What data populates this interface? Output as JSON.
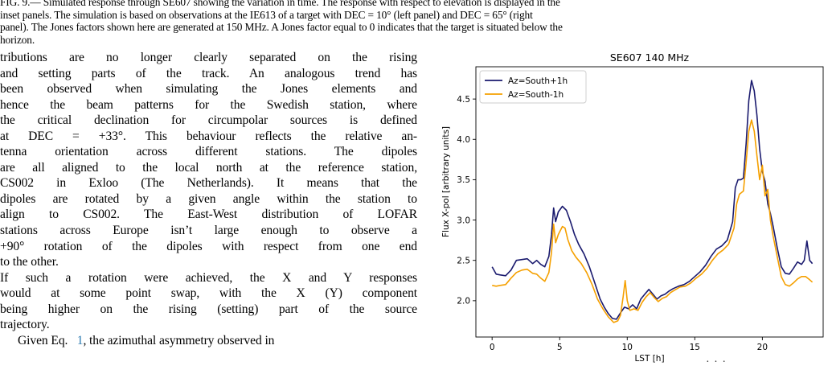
{
  "caption": {
    "line1": "FIG. 9.— Simulated response through SE607 showing the variation in time. The response with respect to elevation is displayed in the",
    "line2": "inset panels. The simulation is based on observations at the IE613 of a target with DEC = 10° (left panel) and DEC = 65° (right",
    "line3": "panel). The Jones factors shown here are generated at 150 MHz. A Jones factor equal to 0 indicates that the target is situated below the",
    "line4": "horizon."
  },
  "body_lines": [
    "tributions are no longer clearly separated on the rising",
    "and setting parts of the track. An analogous trend has",
    "been observed when simulating the Jones elements and",
    "hence the beam patterns for the Swedish station, where",
    "the critical declination for circumpolar sources is defined",
    "at DEC = +33°. This behaviour reflects the relative an-",
    "tenna orientation across different stations. The dipoles",
    "are all aligned to the local north at the reference station,",
    "CS002 in Exloo (The Netherlands). It means that the",
    "dipoles are rotated by a given angle within the station to",
    "align to CS002. The East-West distribution of LOFAR",
    "stations across Europe isn’t large enough to observe a",
    "+90° rotation of the dipoles with respect from one end",
    "to the other.",
    "If such a rotation were achieved, the X and Y responses",
    "would at some point swap, with the X (Y) component",
    "being higher on the rising (setting) part of the source",
    "trajectory."
  ],
  "body_last": {
    "prefix": "Given Eq.",
    "ref": "1",
    "suffix": ", the azimuthal asymmetry observed in"
  },
  "bottom_fragment": "· · ·",
  "chart_data": {
    "type": "line",
    "title": "SE607 140 MHz",
    "xlabel": "LST [h]",
    "ylabel": "Flux X-pol [arbitrary units]",
    "xlim": [
      -1.2,
      24.5
    ],
    "ylim": [
      1.55,
      4.9
    ],
    "xticks": [
      0,
      5,
      10,
      15,
      20
    ],
    "yticks": [
      2.0,
      2.5,
      3.0,
      3.5,
      4.0,
      4.5
    ],
    "ytick_labels": [
      "2.0",
      "2.5",
      "3.0",
      "3.5",
      "4.0",
      "4.5"
    ],
    "legend_position": "upper-left",
    "series": [
      {
        "name": "Az=South+1h",
        "color": "#1a1a6e",
        "points": [
          [
            0,
            2.42
          ],
          [
            0.3,
            2.33
          ],
          [
            0.6,
            2.32
          ],
          [
            1.0,
            2.31
          ],
          [
            1.4,
            2.38
          ],
          [
            1.8,
            2.5
          ],
          [
            2.2,
            2.51
          ],
          [
            2.6,
            2.52
          ],
          [
            3.0,
            2.46
          ],
          [
            3.3,
            2.5
          ],
          [
            3.6,
            2.45
          ],
          [
            3.9,
            2.42
          ],
          [
            4.2,
            2.55
          ],
          [
            4.4,
            2.82
          ],
          [
            4.55,
            3.15
          ],
          [
            4.7,
            2.98
          ],
          [
            4.9,
            3.1
          ],
          [
            5.2,
            3.17
          ],
          [
            5.5,
            3.12
          ],
          [
            5.8,
            2.98
          ],
          [
            6.1,
            2.82
          ],
          [
            6.4,
            2.7
          ],
          [
            6.8,
            2.58
          ],
          [
            7.2,
            2.42
          ],
          [
            7.6,
            2.22
          ],
          [
            8.0,
            2.02
          ],
          [
            8.3,
            1.92
          ],
          [
            8.6,
            1.84
          ],
          [
            8.9,
            1.78
          ],
          [
            9.2,
            1.77
          ],
          [
            9.5,
            1.85
          ],
          [
            9.8,
            1.92
          ],
          [
            10.1,
            1.9
          ],
          [
            10.4,
            1.95
          ],
          [
            10.7,
            1.9
          ],
          [
            11.0,
            2.02
          ],
          [
            11.3,
            2.08
          ],
          [
            11.6,
            2.14
          ],
          [
            11.9,
            2.08
          ],
          [
            12.2,
            2.02
          ],
          [
            12.5,
            2.06
          ],
          [
            12.8,
            2.08
          ],
          [
            13.1,
            2.12
          ],
          [
            13.4,
            2.15
          ],
          [
            13.8,
            2.18
          ],
          [
            14.2,
            2.2
          ],
          [
            14.6,
            2.24
          ],
          [
            15.0,
            2.3
          ],
          [
            15.4,
            2.36
          ],
          [
            15.8,
            2.44
          ],
          [
            16.2,
            2.55
          ],
          [
            16.6,
            2.64
          ],
          [
            17.0,
            2.68
          ],
          [
            17.4,
            2.75
          ],
          [
            17.8,
            2.98
          ],
          [
            18.0,
            3.4
          ],
          [
            18.2,
            3.5
          ],
          [
            18.4,
            3.5
          ],
          [
            18.6,
            3.52
          ],
          [
            18.8,
            3.95
          ],
          [
            19.0,
            4.48
          ],
          [
            19.2,
            4.73
          ],
          [
            19.4,
            4.6
          ],
          [
            19.6,
            4.3
          ],
          [
            19.8,
            3.88
          ],
          [
            20.0,
            3.6
          ],
          [
            20.2,
            3.48
          ],
          [
            20.4,
            3.2
          ],
          [
            20.6,
            3.08
          ],
          [
            20.8,
            2.92
          ],
          [
            21.1,
            2.66
          ],
          [
            21.4,
            2.42
          ],
          [
            21.7,
            2.34
          ],
          [
            22.0,
            2.33
          ],
          [
            22.3,
            2.4
          ],
          [
            22.6,
            2.48
          ],
          [
            22.9,
            2.45
          ],
          [
            23.1,
            2.5
          ],
          [
            23.3,
            2.74
          ],
          [
            23.5,
            2.5
          ],
          [
            23.7,
            2.46
          ]
        ]
      },
      {
        "name": "Az=South-1h",
        "color": "#f5a000",
        "points": [
          [
            0,
            2.19
          ],
          [
            0.3,
            2.18
          ],
          [
            0.6,
            2.19
          ],
          [
            1.0,
            2.2
          ],
          [
            1.4,
            2.28
          ],
          [
            1.8,
            2.35
          ],
          [
            2.2,
            2.38
          ],
          [
            2.6,
            2.39
          ],
          [
            3.0,
            2.34
          ],
          [
            3.3,
            2.33
          ],
          [
            3.6,
            2.28
          ],
          [
            3.9,
            2.24
          ],
          [
            4.2,
            2.35
          ],
          [
            4.4,
            2.6
          ],
          [
            4.55,
            2.95
          ],
          [
            4.7,
            2.72
          ],
          [
            4.9,
            2.82
          ],
          [
            5.2,
            2.92
          ],
          [
            5.4,
            2.9
          ],
          [
            5.6,
            2.76
          ],
          [
            5.9,
            2.62
          ],
          [
            6.2,
            2.54
          ],
          [
            6.6,
            2.46
          ],
          [
            7.0,
            2.35
          ],
          [
            7.4,
            2.2
          ],
          [
            7.8,
            2.02
          ],
          [
            8.2,
            1.9
          ],
          [
            8.6,
            1.8
          ],
          [
            9.0,
            1.73
          ],
          [
            9.3,
            1.75
          ],
          [
            9.5,
            1.82
          ],
          [
            9.7,
            2.05
          ],
          [
            9.85,
            2.25
          ],
          [
            10.0,
            2.0
          ],
          [
            10.2,
            1.88
          ],
          [
            10.5,
            1.9
          ],
          [
            10.8,
            1.88
          ],
          [
            11.1,
            1.98
          ],
          [
            11.4,
            2.05
          ],
          [
            11.7,
            2.1
          ],
          [
            12.0,
            2.04
          ],
          [
            12.3,
            1.99
          ],
          [
            12.6,
            2.03
          ],
          [
            12.9,
            2.05
          ],
          [
            13.2,
            2.1
          ],
          [
            13.5,
            2.13
          ],
          [
            13.9,
            2.17
          ],
          [
            14.3,
            2.18
          ],
          [
            14.7,
            2.22
          ],
          [
            15.1,
            2.28
          ],
          [
            15.5,
            2.33
          ],
          [
            15.9,
            2.4
          ],
          [
            16.3,
            2.5
          ],
          [
            16.7,
            2.58
          ],
          [
            17.1,
            2.63
          ],
          [
            17.5,
            2.7
          ],
          [
            17.9,
            2.9
          ],
          [
            18.1,
            3.2
          ],
          [
            18.3,
            3.32
          ],
          [
            18.6,
            3.36
          ],
          [
            18.8,
            3.72
          ],
          [
            19.0,
            4.1
          ],
          [
            19.2,
            4.24
          ],
          [
            19.4,
            4.1
          ],
          [
            19.6,
            3.8
          ],
          [
            19.8,
            3.5
          ],
          [
            20.0,
            3.68
          ],
          [
            20.2,
            3.3
          ],
          [
            20.4,
            3.38
          ],
          [
            20.6,
            3.0
          ],
          [
            20.8,
            2.8
          ],
          [
            21.1,
            2.55
          ],
          [
            21.4,
            2.3
          ],
          [
            21.7,
            2.2
          ],
          [
            22.0,
            2.18
          ],
          [
            22.3,
            2.22
          ],
          [
            22.6,
            2.27
          ],
          [
            22.9,
            2.3
          ],
          [
            23.2,
            2.3
          ],
          [
            23.5,
            2.26
          ],
          [
            23.7,
            2.23
          ]
        ]
      }
    ]
  }
}
